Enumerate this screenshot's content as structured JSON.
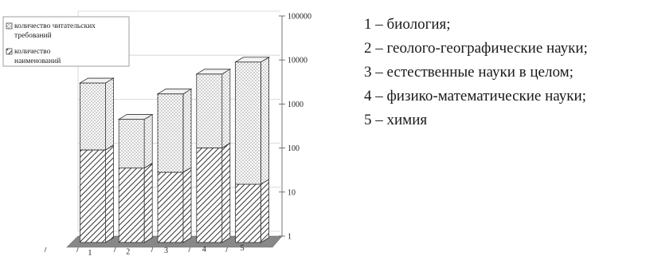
{
  "chart_data": {
    "type": "bar",
    "stacked": true,
    "scale": "log",
    "categories": [
      "1",
      "2",
      "3",
      "4",
      "5"
    ],
    "series": [
      {
        "name": "количество наименований",
        "values": [
          90,
          35,
          28,
          100,
          15
        ],
        "pattern": "hatch"
      },
      {
        "name": "количество читательских требований",
        "values": [
          3000,
          450,
          1700,
          4800,
          9000
        ],
        "pattern": "dots"
      }
    ],
    "ylim": [
      1,
      100000
    ],
    "yticks": [
      "1",
      "10",
      "100",
      "1000",
      "10000",
      "100000"
    ],
    "grid": true,
    "legend_position": "top-left",
    "colors": {
      "bar_fill": "#ffffff",
      "stroke": "#333333",
      "floor": "#888888",
      "grid": "#d0d0d0"
    }
  },
  "key": [
    "1 – биология;",
    "2 – геолого-географические науки;",
    "3 – естественные науки в целом;",
    "4 – физико-математические науки;",
    "5 – химия"
  ]
}
